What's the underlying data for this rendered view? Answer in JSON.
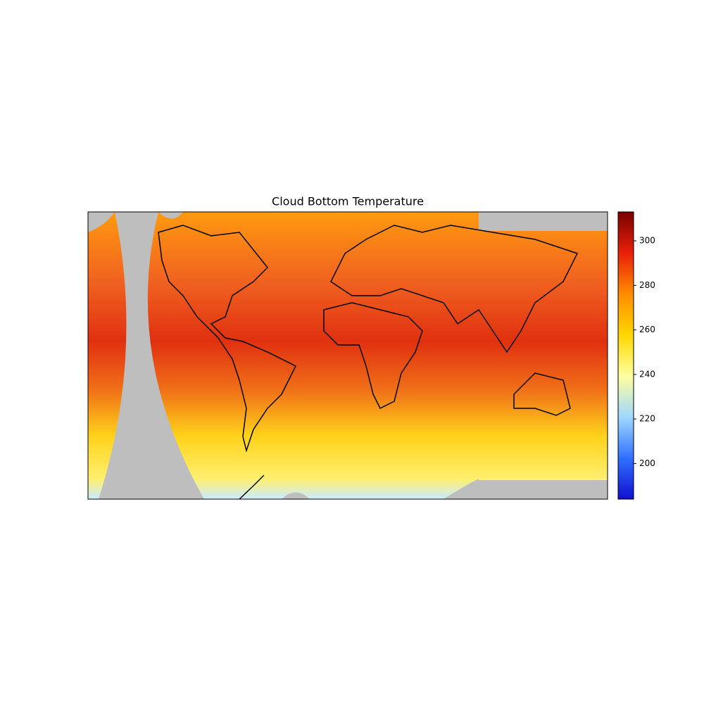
{
  "chart_data": {
    "type": "map",
    "title": "Cloud Bottom Temperature",
    "colorbar": {
      "lim": [
        184,
        313
      ],
      "ticks": [
        200,
        220,
        240,
        260,
        280,
        300
      ],
      "colors": [
        "#1010d0",
        "#3070ff",
        "#a0d8ff",
        "#ffffa0",
        "#ffd700",
        "#ff8c00",
        "#e8200a",
        "#7a0000"
      ]
    }
  }
}
